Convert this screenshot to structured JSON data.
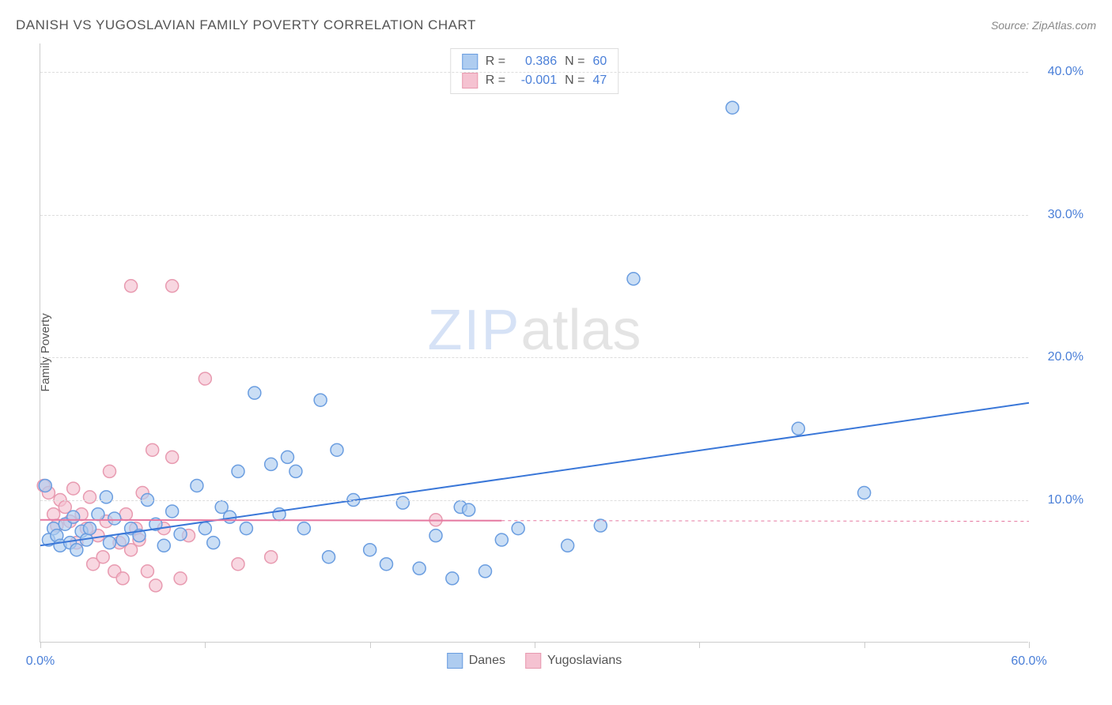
{
  "title": "DANISH VS YUGOSLAVIAN FAMILY POVERTY CORRELATION CHART",
  "source": "Source: ZipAtlas.com",
  "y_axis_label": "Family Poverty",
  "watermark": {
    "part1": "ZIP",
    "part2": "atlas"
  },
  "chart": {
    "type": "scatter",
    "xlim": [
      0,
      60
    ],
    "ylim": [
      0,
      42
    ],
    "x_ticks": [
      0,
      10,
      20,
      30,
      40,
      50,
      60
    ],
    "x_tick_labels": [
      "0.0%",
      "",
      "",
      "",
      "",
      "",
      "60.0%"
    ],
    "y_ticks": [
      10,
      20,
      30,
      40
    ],
    "y_tick_labels": [
      "10.0%",
      "20.0%",
      "30.0%",
      "40.0%"
    ],
    "grid_color": "#dddddd",
    "axis_color": "#cccccc",
    "background_color": "#ffffff",
    "marker_radius": 8,
    "marker_stroke_width": 1.5,
    "line_width": 2,
    "series": [
      {
        "name": "Danes",
        "fill_color": "#aeccf0",
        "stroke_color": "#6a9de0",
        "line_color": "#3a77d8",
        "R": "0.386",
        "N": "60",
        "trend": {
          "x1": 0,
          "y1": 6.8,
          "x2": 60,
          "y2": 16.8
        },
        "points": [
          [
            0.3,
            11.0
          ],
          [
            0.5,
            7.2
          ],
          [
            0.8,
            8.0
          ],
          [
            1.0,
            7.5
          ],
          [
            1.2,
            6.8
          ],
          [
            1.5,
            8.3
          ],
          [
            1.8,
            7.0
          ],
          [
            2.0,
            8.8
          ],
          [
            2.2,
            6.5
          ],
          [
            2.5,
            7.8
          ],
          [
            2.8,
            7.2
          ],
          [
            3.0,
            8.0
          ],
          [
            3.5,
            9.0
          ],
          [
            4.0,
            10.2
          ],
          [
            4.2,
            7.0
          ],
          [
            4.5,
            8.7
          ],
          [
            5.0,
            7.2
          ],
          [
            5.5,
            8.0
          ],
          [
            6.0,
            7.5
          ],
          [
            6.5,
            10.0
          ],
          [
            7.0,
            8.3
          ],
          [
            7.5,
            6.8
          ],
          [
            8.0,
            9.2
          ],
          [
            8.5,
            7.6
          ],
          [
            9.5,
            11.0
          ],
          [
            10.0,
            8.0
          ],
          [
            10.5,
            7.0
          ],
          [
            11.0,
            9.5
          ],
          [
            11.5,
            8.8
          ],
          [
            12.0,
            12.0
          ],
          [
            12.5,
            8.0
          ],
          [
            13.0,
            17.5
          ],
          [
            14.0,
            12.5
          ],
          [
            14.5,
            9.0
          ],
          [
            15.0,
            13.0
          ],
          [
            15.5,
            12.0
          ],
          [
            16.0,
            8.0
          ],
          [
            17.0,
            17.0
          ],
          [
            17.5,
            6.0
          ],
          [
            18.0,
            13.5
          ],
          [
            19.0,
            10.0
          ],
          [
            20.0,
            6.5
          ],
          [
            21.0,
            5.5
          ],
          [
            22.0,
            9.8
          ],
          [
            23.0,
            5.2
          ],
          [
            24.0,
            7.5
          ],
          [
            25.0,
            4.5
          ],
          [
            25.5,
            9.5
          ],
          [
            26.0,
            9.3
          ],
          [
            27.0,
            5.0
          ],
          [
            28.0,
            7.2
          ],
          [
            29.0,
            8.0
          ],
          [
            32.0,
            6.8
          ],
          [
            34.0,
            8.2
          ],
          [
            36.0,
            25.5
          ],
          [
            42.0,
            37.5
          ],
          [
            46.0,
            15.0
          ],
          [
            50.0,
            10.5
          ]
        ]
      },
      {
        "name": "Yugoslavians",
        "fill_color": "#f5c2d1",
        "stroke_color": "#e89ab0",
        "line_color": "#e578a0",
        "R": "-0.001",
        "N": "47",
        "trend": {
          "x1": 0,
          "y1": 8.6,
          "x2": 28,
          "y2": 8.55
        },
        "trend_dashed": {
          "x1": 28,
          "y1": 8.55,
          "x2": 60,
          "y2": 8.5
        },
        "points": [
          [
            0.2,
            11.0
          ],
          [
            0.5,
            10.5
          ],
          [
            0.8,
            9.0
          ],
          [
            1.0,
            8.2
          ],
          [
            1.2,
            10.0
          ],
          [
            1.5,
            9.5
          ],
          [
            1.8,
            8.5
          ],
          [
            2.0,
            10.8
          ],
          [
            2.2,
            7.0
          ],
          [
            2.5,
            9.0
          ],
          [
            2.8,
            8.0
          ],
          [
            3.0,
            10.2
          ],
          [
            3.2,
            5.5
          ],
          [
            3.5,
            7.5
          ],
          [
            3.8,
            6.0
          ],
          [
            4.0,
            8.5
          ],
          [
            4.2,
            12.0
          ],
          [
            4.5,
            5.0
          ],
          [
            4.8,
            7.0
          ],
          [
            5.0,
            4.5
          ],
          [
            5.2,
            9.0
          ],
          [
            5.5,
            6.5
          ],
          [
            5.5,
            25.0
          ],
          [
            5.8,
            8.0
          ],
          [
            6.0,
            7.2
          ],
          [
            6.2,
            10.5
          ],
          [
            6.5,
            5.0
          ],
          [
            6.8,
            13.5
          ],
          [
            7.0,
            4.0
          ],
          [
            7.5,
            8.0
          ],
          [
            8.0,
            25.0
          ],
          [
            8.0,
            13.0
          ],
          [
            8.5,
            4.5
          ],
          [
            9.0,
            7.5
          ],
          [
            10.0,
            18.5
          ],
          [
            12.0,
            5.5
          ],
          [
            14.0,
            6.0
          ],
          [
            24.0,
            8.6
          ]
        ]
      }
    ]
  },
  "legend_top": {
    "rows": [
      {
        "swatch_fill": "#aeccf0",
        "swatch_stroke": "#6a9de0",
        "r_label": "R =",
        "r_value": "0.386",
        "n_label": "N =",
        "n_value": "60"
      },
      {
        "swatch_fill": "#f5c2d1",
        "swatch_stroke": "#e89ab0",
        "r_label": "R =",
        "r_value": "-0.001",
        "n_label": "N =",
        "n_value": "47"
      }
    ]
  },
  "legend_bottom": {
    "items": [
      {
        "swatch_fill": "#aeccf0",
        "swatch_stroke": "#6a9de0",
        "label": "Danes"
      },
      {
        "swatch_fill": "#f5c2d1",
        "swatch_stroke": "#e89ab0",
        "label": "Yugoslavians"
      }
    ]
  }
}
